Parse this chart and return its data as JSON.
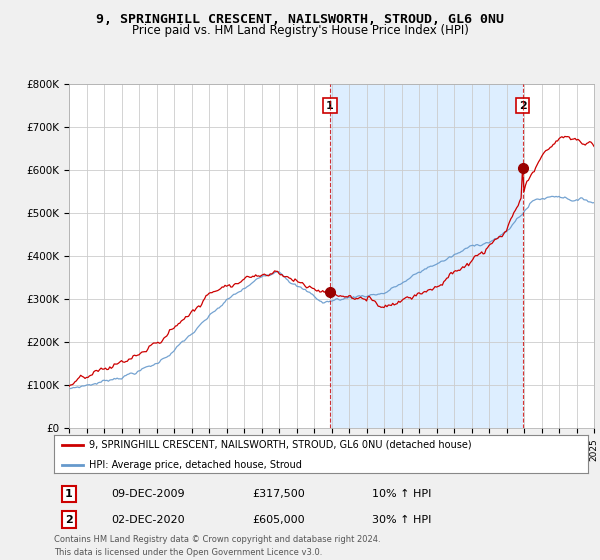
{
  "title_line1": "9, SPRINGHILL CRESCENT, NAILSWORTH, STROUD, GL6 0NU",
  "title_line2": "Price paid vs. HM Land Registry's House Price Index (HPI)",
  "background_color": "#f0f0f0",
  "plot_bg_color": "#ffffff",
  "shade_color": "#ddeeff",
  "legend_entry1": "9, SPRINGHILL CRESCENT, NAILSWORTH, STROUD, GL6 0NU (detached house)",
  "legend_entry2": "HPI: Average price, detached house, Stroud",
  "sale1_label": "1",
  "sale1_date": "09-DEC-2009",
  "sale1_price": "£317,500",
  "sale1_hpi": "10% ↑ HPI",
  "sale2_label": "2",
  "sale2_date": "02-DEC-2020",
  "sale2_price": "£605,000",
  "sale2_hpi": "30% ↑ HPI",
  "footer": "Contains HM Land Registry data © Crown copyright and database right 2024.\nThis data is licensed under the Open Government Licence v3.0.",
  "red_color": "#cc0000",
  "blue_color": "#6699cc",
  "sale_marker_color": "#990000",
  "ylim_min": 0,
  "ylim_max": 800000,
  "yticks": [
    0,
    100000,
    200000,
    300000,
    400000,
    500000,
    600000,
    700000,
    800000
  ],
  "ytick_labels": [
    "£0",
    "£100K",
    "£200K",
    "£300K",
    "£400K",
    "£500K",
    "£600K",
    "£700K",
    "£800K"
  ],
  "sale1_x": 2009.917,
  "sale1_y": 317500,
  "sale2_x": 2020.917,
  "sale2_y": 605000,
  "vline1_x": 2009.917,
  "vline2_x": 2020.917,
  "xmin": 1995,
  "xmax": 2025
}
